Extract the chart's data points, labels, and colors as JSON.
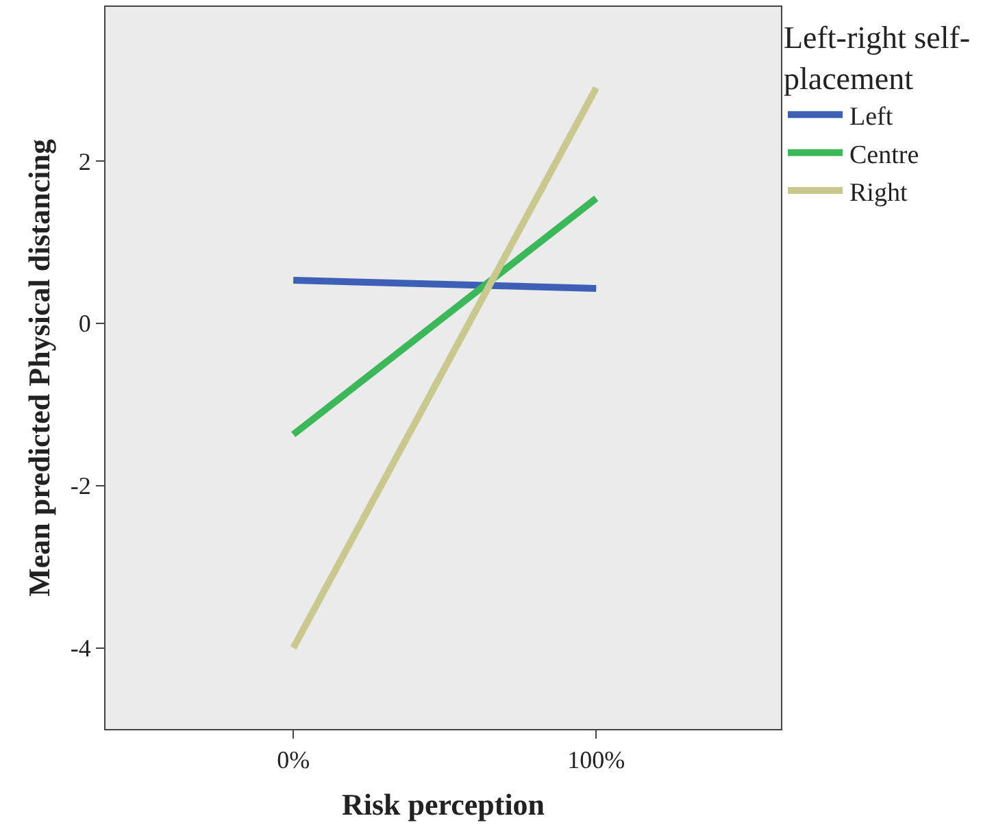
{
  "chart_data": {
    "type": "line",
    "xlabel": "Risk perception",
    "ylabel": "Mean predicted Physical distancing",
    "legend_title": "Left-right self-placement",
    "categories": [
      "0%",
      "100%"
    ],
    "series": [
      {
        "name": "Left",
        "color": "#3d5fb5",
        "values": [
          0.53,
          0.43
        ]
      },
      {
        "name": "Centre",
        "color": "#3cb85a",
        "values": [
          -1.37,
          1.54
        ]
      },
      {
        "name": "Right",
        "color": "#c9c98f",
        "values": [
          -4.0,
          2.9
        ]
      }
    ],
    "ylim": [
      -5,
      3.9
    ],
    "yticks": [
      -4,
      -2,
      0,
      2
    ],
    "grid": false,
    "legend": "right",
    "marker": "none",
    "line_style": "solid"
  }
}
